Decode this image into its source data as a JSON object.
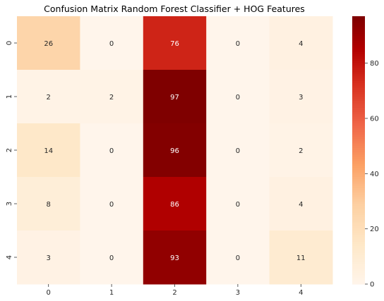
{
  "chart_data": {
    "type": "heatmap",
    "title": "Confusion Matrix Random Forest Classifier + HOG Features",
    "xlabel": "",
    "ylabel": "",
    "x_categories": [
      "0",
      "1",
      "2",
      "3",
      "4"
    ],
    "y_categories": [
      "0",
      "1",
      "2",
      "3",
      "4"
    ],
    "values": [
      [
        26,
        0,
        76,
        0,
        4
      ],
      [
        2,
        2,
        97,
        0,
        3
      ],
      [
        14,
        0,
        96,
        0,
        2
      ],
      [
        8,
        0,
        86,
        0,
        4
      ],
      [
        3,
        0,
        93,
        0,
        11
      ]
    ],
    "colormap": "OrRd",
    "vmin": 0,
    "vmax": 97,
    "colorbar": {
      "ticks": [
        0,
        20,
        40,
        60,
        80
      ],
      "tick_labels": [
        "0",
        "20",
        "40",
        "60",
        "80"
      ]
    },
    "annotated": true,
    "grid": false
  }
}
